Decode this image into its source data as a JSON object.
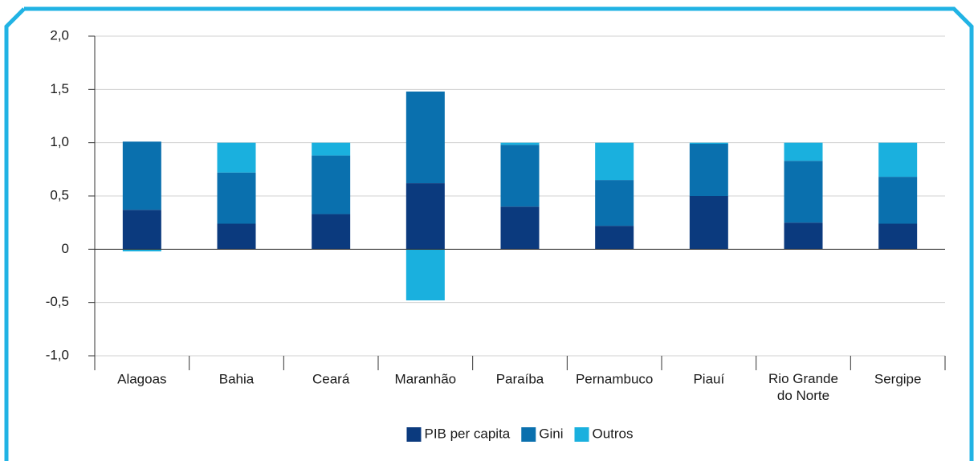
{
  "chart_data": {
    "type": "bar",
    "stacked": true,
    "categories": [
      "Alagoas",
      "Bahia",
      "Ceará",
      "Maranhão",
      "Paraíba",
      "Pernambuco",
      "Piauí",
      "Rio Grande do Norte",
      "Sergipe"
    ],
    "series": [
      {
        "name": "PIB per capita",
        "color": "#0b3a7e",
        "values": [
          0.37,
          0.24,
          0.33,
          0.62,
          0.4,
          0.22,
          0.5,
          0.25,
          0.24
        ]
      },
      {
        "name": "Gini",
        "color": "#0a70ae",
        "values": [
          0.64,
          0.48,
          0.55,
          0.86,
          0.58,
          0.43,
          0.49,
          0.58,
          0.44
        ]
      },
      {
        "name": "Outros",
        "color": "#1ab0de",
        "values": [
          -0.02,
          0.28,
          0.12,
          -0.48,
          0.02,
          0.35,
          0.01,
          0.17,
          0.32
        ]
      }
    ],
    "ylim": [
      -1.0,
      2.0
    ],
    "yticks": [
      {
        "value": -1.0,
        "label": "-1,0"
      },
      {
        "value": -0.5,
        "label": "-0,5"
      },
      0,
      {
        "value": 0.5,
        "label": "0,5"
      },
      {
        "value": 1.0,
        "label": "1,0"
      },
      {
        "value": 1.5,
        "label": "1,5"
      },
      {
        "value": 2.0,
        "label": "2,0"
      }
    ],
    "grid": true,
    "legend": "bottom"
  }
}
